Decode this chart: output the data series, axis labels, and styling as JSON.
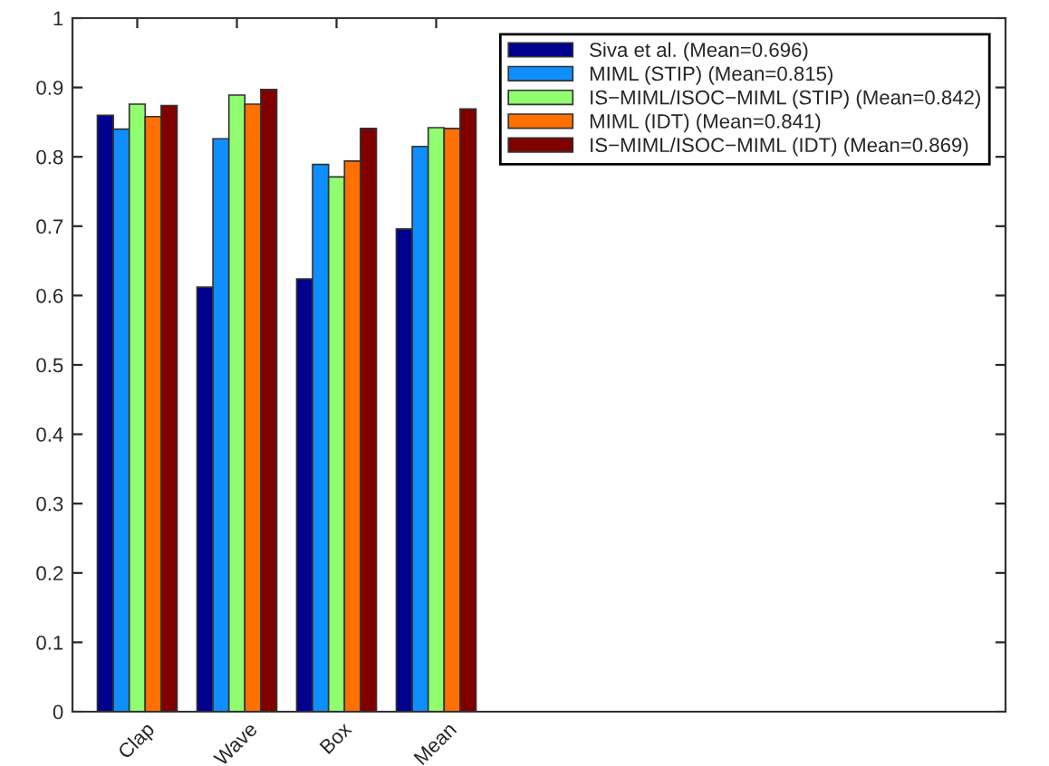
{
  "chart_data": {
    "type": "bar",
    "categories": [
      "Clap",
      "Wave",
      "Box",
      "Mean"
    ],
    "series": [
      {
        "name": "Siva et al. (Mean=0.696)",
        "color": "#00008f",
        "values": [
          0.86,
          0.612,
          0.624,
          0.696
        ]
      },
      {
        "name": "MIML (STIP) (Mean=0.815)",
        "color": "#0f8fff",
        "values": [
          0.84,
          0.826,
          0.789,
          0.815
        ]
      },
      {
        "name": "IS−MIML/ISOC−MIML (STIP) (Mean=0.842)",
        "color": "#8fff70",
        "values": [
          0.876,
          0.889,
          0.771,
          0.842
        ]
      },
      {
        "name": "MIML (IDT) (Mean=0.841)",
        "color": "#ff7000",
        "values": [
          0.858,
          0.876,
          0.794,
          0.841
        ]
      },
      {
        "name": "IS−MIML/ISOC−MIML (IDT) (Mean=0.869)",
        "color": "#800000",
        "values": [
          0.874,
          0.897,
          0.841,
          0.869
        ]
      }
    ],
    "ylim": [
      0,
      1
    ],
    "yticks": [
      0,
      0.1,
      0.2,
      0.3,
      0.4,
      0.5,
      0.6,
      0.7,
      0.8,
      0.9,
      1
    ],
    "legend": "top right",
    "grid": false
  }
}
